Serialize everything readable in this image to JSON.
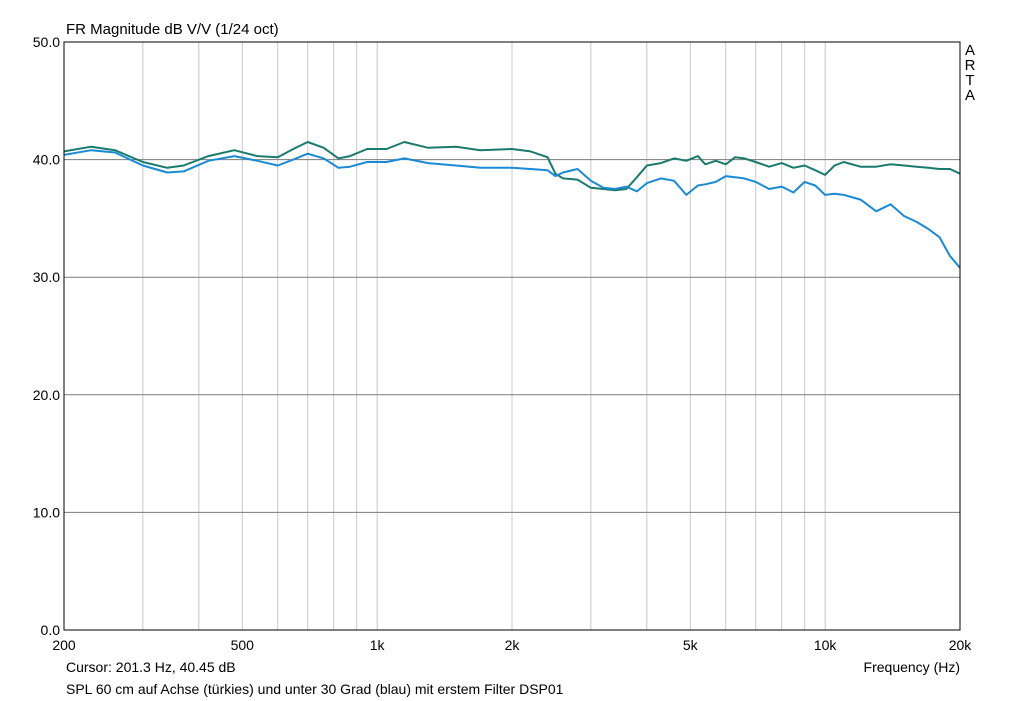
{
  "chart_data": {
    "type": "line",
    "title": "FR Magnitude dB V/V (1/24 oct)",
    "watermark": [
      "A",
      "R",
      "T",
      "A"
    ],
    "xlabel": "Frequency (Hz)",
    "ylabel": "",
    "xscale": "log",
    "xlim": [
      200,
      20000
    ],
    "ylim": [
      0,
      50
    ],
    "grid": true,
    "x_ticks": [
      200,
      500,
      1000,
      2000,
      5000,
      10000,
      20000
    ],
    "x_tick_labels": [
      "200",
      "500",
      "1k",
      "2k",
      "5k",
      "10k",
      "20k"
    ],
    "y_ticks": [
      0,
      10,
      20,
      30,
      40,
      50
    ],
    "y_tick_labels": [
      "0.0",
      "10.0",
      "20.0",
      "30.0",
      "40.0",
      "50.0"
    ],
    "cursor_text": "Cursor: 201.3 Hz, 40.45 dB",
    "caption": "SPL 60 cm auf Achse (türkies) und unter 30 Grad (blau) mit erstem Filter DSP01",
    "series": [
      {
        "name": "SPL 60 cm auf Achse (türkies)",
        "color": "#1a7a6e",
        "x": [
          200,
          230,
          260,
          300,
          340,
          370,
          420,
          480,
          540,
          600,
          650,
          700,
          760,
          820,
          870,
          950,
          1050,
          1150,
          1300,
          1500,
          1700,
          2000,
          2200,
          2400,
          2500,
          2600,
          2800,
          3000,
          3200,
          3400,
          3600,
          3800,
          4000,
          4300,
          4600,
          4900,
          5200,
          5400,
          5700,
          6000,
          6300,
          6600,
          7000,
          7500,
          8000,
          8500,
          9000,
          9500,
          10000,
          10500,
          11000,
          12000,
          13000,
          14000,
          15000,
          16000,
          17000,
          18000,
          19000,
          20000
        ],
        "y": [
          40.7,
          41.1,
          40.8,
          39.8,
          39.3,
          39.5,
          40.3,
          40.8,
          40.3,
          40.2,
          40.9,
          41.5,
          41.0,
          40.1,
          40.3,
          40.9,
          40.9,
          41.5,
          41.0,
          41.1,
          40.8,
          40.9,
          40.7,
          40.2,
          38.8,
          38.4,
          38.3,
          37.6,
          37.5,
          37.4,
          37.5,
          38.5,
          39.5,
          39.7,
          40.1,
          39.9,
          40.3,
          39.6,
          39.9,
          39.6,
          40.2,
          40.1,
          39.8,
          39.4,
          39.7,
          39.3,
          39.5,
          39.1,
          38.7,
          39.5,
          39.8,
          39.4,
          39.4,
          39.6,
          39.5,
          39.4,
          39.3,
          39.2,
          39.2,
          38.8
        ]
      },
      {
        "name": "unter 30 Grad (blau)",
        "color": "#1a8ad4",
        "x": [
          200,
          230,
          260,
          300,
          340,
          370,
          420,
          480,
          540,
          600,
          650,
          700,
          760,
          820,
          870,
          950,
          1050,
          1150,
          1300,
          1500,
          1700,
          2000,
          2200,
          2400,
          2500,
          2600,
          2800,
          3000,
          3200,
          3400,
          3600,
          3800,
          4000,
          4300,
          4600,
          4900,
          5200,
          5400,
          5700,
          6000,
          6300,
          6600,
          7000,
          7500,
          8000,
          8500,
          9000,
          9500,
          10000,
          10500,
          11000,
          12000,
          13000,
          14000,
          15000,
          16000,
          17000,
          18000,
          19000,
          20000
        ],
        "y": [
          40.4,
          40.8,
          40.6,
          39.5,
          38.9,
          39.0,
          39.9,
          40.3,
          39.9,
          39.5,
          40.0,
          40.5,
          40.1,
          39.3,
          39.4,
          39.8,
          39.8,
          40.1,
          39.7,
          39.5,
          39.3,
          39.3,
          39.2,
          39.1,
          38.6,
          38.9,
          39.2,
          38.2,
          37.6,
          37.5,
          37.7,
          37.3,
          38.0,
          38.4,
          38.2,
          37.0,
          37.8,
          37.9,
          38.1,
          38.6,
          38.5,
          38.4,
          38.1,
          37.5,
          37.7,
          37.2,
          38.1,
          37.8,
          37.0,
          37.1,
          37.0,
          36.6,
          35.6,
          36.2,
          35.2,
          34.7,
          34.1,
          33.4,
          31.8,
          30.8
        ]
      }
    ]
  }
}
